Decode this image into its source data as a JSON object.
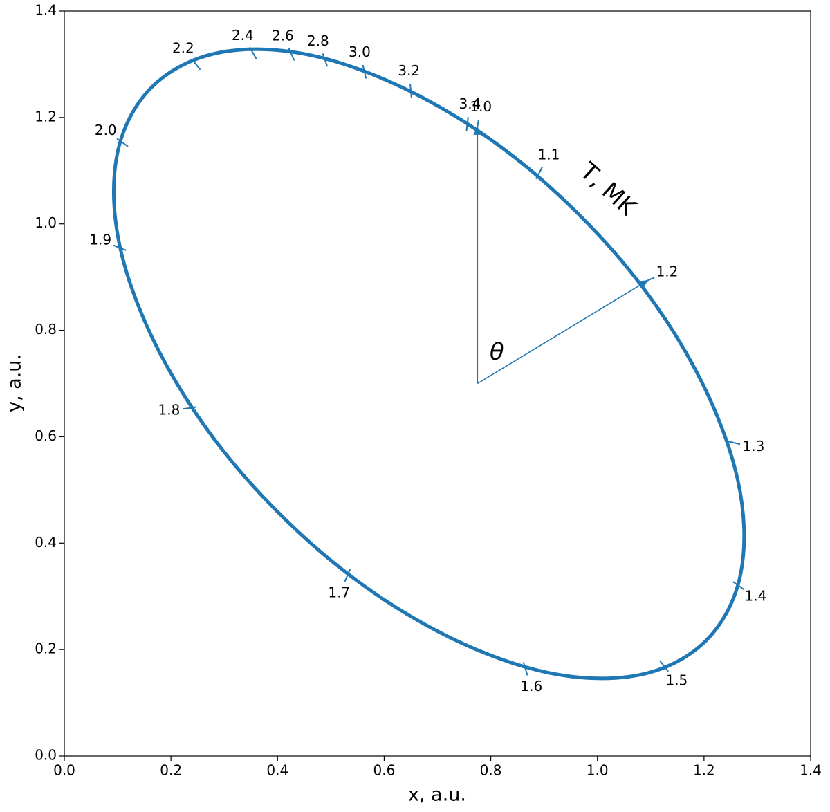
{
  "chart_data": {
    "type": "line",
    "xlabel": "x, a.u.",
    "ylabel": "y, a.u.",
    "xlim": [
      0,
      1.4
    ],
    "ylim": [
      0,
      1.4
    ],
    "xticks": [
      {
        "value": 0,
        "label": "0.0"
      },
      0.2,
      0.4,
      0.6,
      0.8,
      {
        "value": 1,
        "label": "1.0"
      },
      1.2,
      1.4
    ],
    "yticks": [
      {
        "value": 0,
        "label": "0.0"
      },
      0.2,
      0.4,
      0.6,
      0.8,
      {
        "value": 1,
        "label": "1.0"
      },
      1.2,
      1.4
    ],
    "color": "#1f77b4",
    "curve": {
      "x": [
        1.204,
        1.245,
        1.269,
        1.275,
        1.263,
        1.233,
        1.187,
        1.126,
        1.051,
        0.965,
        0.871,
        0.77,
        0.667,
        0.565,
        0.467,
        0.375,
        0.291,
        0.221,
        0.164,
        0.123,
        0.099,
        0.093,
        0.105,
        0.135,
        0.181,
        0.242,
        0.317,
        0.403,
        0.497,
        0.598,
        0.701,
        0.803,
        0.901,
        0.993,
        1.077,
        1.147,
        1.204
      ],
      "y": [
        0.217,
        0.274,
        0.344,
        0.428,
        0.52,
        0.618,
        0.72,
        0.823,
        0.924,
        1.018,
        1.104,
        1.179,
        1.24,
        1.286,
        1.316,
        1.328,
        1.322,
        1.298,
        1.257,
        1.2,
        1.13,
        1.046,
        0.954,
        0.856,
        0.754,
        0.651,
        0.55,
        0.456,
        0.37,
        0.295,
        0.234,
        0.188,
        0.158,
        0.146,
        0.152,
        0.176,
        0.217
      ]
    },
    "markers": {
      "name": "T, MK",
      "values": [
        1.0,
        1.1,
        1.2,
        1.3,
        1.4,
        1.5,
        1.6,
        1.7,
        1.8,
        1.9,
        2.0,
        2.2,
        2.4,
        2.6,
        2.8,
        3.0,
        3.2,
        3.4
      ],
      "value_labels": [
        "1.0",
        "1.1",
        "1.2",
        "1.3",
        "1.4",
        "1.5",
        "1.6",
        "1.7",
        "1.8",
        "1.9",
        "2.0",
        "2.2",
        "2.4",
        "2.6",
        "2.8",
        "3.0",
        "3.2",
        "3.4"
      ],
      "x": [
        0.775,
        0.891,
        1.095,
        1.255,
        1.265,
        1.125,
        0.865,
        0.531,
        0.235,
        0.104,
        0.109,
        0.247,
        0.354,
        0.426,
        0.489,
        0.563,
        0.65,
        0.756
      ],
      "y": [
        1.183,
        1.096,
        0.894,
        0.589,
        0.32,
        0.169,
        0.164,
        0.339,
        0.654,
        0.955,
        1.153,
        1.3,
        1.321,
        1.319,
        1.308,
        1.286,
        1.25,
        1.188
      ]
    },
    "arrows": [
      {
        "x": [
          0.775,
          0.775
        ],
        "y": [
          0.7,
          1.183
        ]
      },
      {
        "x": [
          0.775,
          1.095
        ],
        "y": [
          0.7,
          0.894
        ]
      }
    ],
    "angle_label": "θ"
  }
}
